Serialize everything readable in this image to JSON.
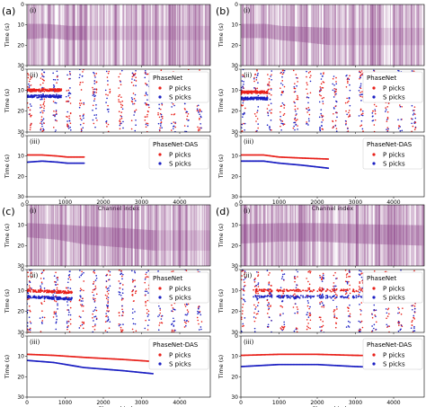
{
  "panels": [
    {
      "label": "(a)",
      "sub": [
        "(i)",
        "(ii)",
        "(iii)"
      ],
      "legend2_title": "PhaseNet",
      "legend3_title": "PhaseNet-DAS",
      "ii_p": [
        [
          0,
          10
        ],
        [
          900,
          10
        ],
        [
          0,
          14
        ],
        [
          900,
          13
        ]
      ],
      "iii_p": [
        [
          20,
          9.5
        ],
        [
          400,
          9.5
        ],
        [
          800,
          10
        ],
        [
          1050,
          10.5
        ],
        [
          1500,
          10.5
        ]
      ],
      "iii_s": [
        [
          20,
          13
        ],
        [
          400,
          12.5
        ],
        [
          800,
          13
        ],
        [
          1050,
          13.5
        ],
        [
          1500,
          13.5
        ]
      ],
      "noise_i": [
        3000,
        3700,
        4200
      ]
    },
    {
      "label": "(b)",
      "sub": [
        "(i)",
        "(ii)",
        "(iii)"
      ],
      "legend2_title": "PhaseNet",
      "legend3_title": "PhaseNet-DAS",
      "ii_p": [
        [
          0,
          11
        ],
        [
          700,
          11
        ]
      ],
      "iii_p": [
        [
          20,
          9.5
        ],
        [
          600,
          9.5
        ],
        [
          1000,
          10.5
        ],
        [
          1600,
          11
        ],
        [
          2300,
          11.5
        ]
      ],
      "iii_s": [
        [
          20,
          12.5
        ],
        [
          600,
          12.5
        ],
        [
          1000,
          13.5
        ],
        [
          1600,
          14.5
        ],
        [
          2300,
          16
        ]
      ],
      "noise_i": [
        2900,
        3400
      ]
    },
    {
      "label": "(c)",
      "sub": [
        "(i)",
        "(ii)",
        "(iii)"
      ],
      "legend2_title": "PhaseNet",
      "legend3_title": "PhaseNet-DAS",
      "ii_p": [
        [
          0,
          10
        ],
        [
          1200,
          11
        ]
      ],
      "iii_p": [
        [
          20,
          9
        ],
        [
          700,
          9.5
        ],
        [
          1500,
          10.5
        ],
        [
          2500,
          11.5
        ],
        [
          3300,
          12.5
        ]
      ],
      "iii_s": [
        [
          20,
          12
        ],
        [
          700,
          13
        ],
        [
          1500,
          15.5
        ],
        [
          2500,
          17
        ],
        [
          3300,
          18.5
        ]
      ],
      "noise_i": [
        1800,
        2500
      ]
    },
    {
      "label": "(d)",
      "sub": [
        "(i)",
        "(ii)",
        "(iii)"
      ],
      "legend2_title": "PhaseNet",
      "legend3_title": "PhaseNet-DAS",
      "ii_p": [
        [
          300,
          10
        ],
        [
          3500,
          10
        ]
      ],
      "iii_p": [
        [
          20,
          9.5
        ],
        [
          1000,
          9
        ],
        [
          2000,
          9
        ],
        [
          3000,
          9.5
        ],
        [
          4700,
          10
        ]
      ],
      "iii_s": [
        [
          20,
          15
        ],
        [
          1000,
          14
        ],
        [
          2000,
          14
        ],
        [
          3000,
          15
        ],
        [
          4700,
          16
        ]
      ],
      "noise_i": [
        1500,
        3000
      ]
    }
  ],
  "legend": {
    "p_label": "P picks",
    "s_label": "S picks",
    "p_color": "#e8201a",
    "s_color": "#1b1fc2"
  },
  "axes": {
    "ylabel": "Time (s)",
    "xlabel": "Channel index",
    "x_ticks": [
      "0",
      "1000",
      "2000",
      "3000",
      "4000"
    ],
    "x_range": [
      0,
      4800
    ],
    "y_ticks_a": [
      "0",
      "10",
      "20",
      "30"
    ],
    "y_range": [
      0,
      30
    ]
  },
  "colors": {
    "waveform": "#8a3f86",
    "background": "#ffffff"
  }
}
